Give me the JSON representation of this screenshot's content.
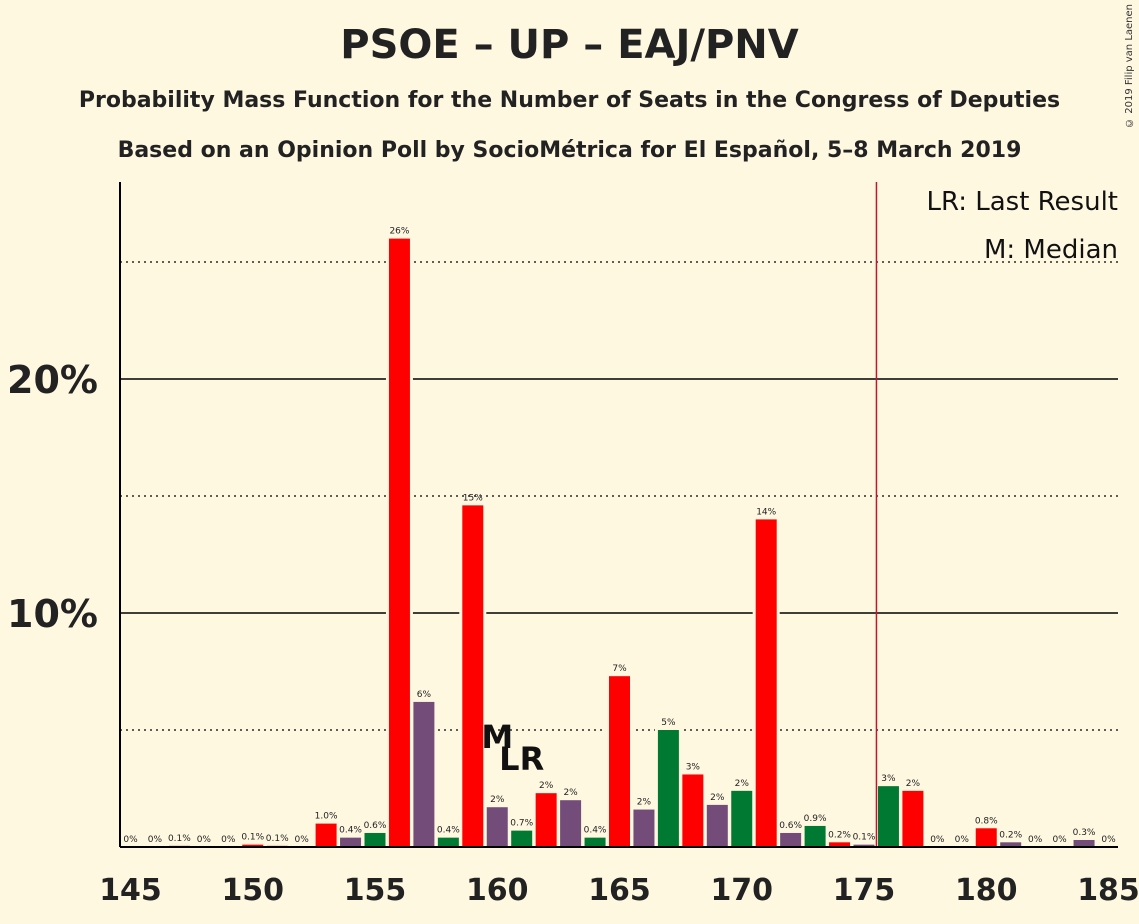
{
  "title": "PSOE – UP – EAJ/PNV",
  "subtitle1": "Probability Mass Function for the Number of Seats in the Congress of Deputies",
  "subtitle2": "Based on an Opinion Poll by SocioMétrica for El Español, 5–8 March 2019",
  "copyright": "© 2019 Filip van Laenen",
  "legend": {
    "lr": "LR: Last Result",
    "m": "M: Median"
  },
  "markers": {
    "median_label": "M",
    "median_seat": 160,
    "last_result_label": "LR",
    "last_result_seat": 161,
    "majority_seat": 176
  },
  "colors": {
    "red": "#FF0000",
    "purple": "#744C7A",
    "green": "#007A33",
    "majority_line": "#C0152A",
    "background": "#FFF8E1"
  },
  "chart_data": {
    "type": "bar",
    "x_ticks": [
      145,
      150,
      155,
      160,
      165,
      170,
      175,
      180,
      185
    ],
    "y_ticks": [
      "10%",
      "20%"
    ],
    "ylim": [
      0,
      28.5
    ],
    "xlim": [
      145,
      185
    ],
    "bars": [
      {
        "seat": 145,
        "value": 0,
        "label": "0%",
        "color": "red"
      },
      {
        "seat": 146,
        "value": 0,
        "label": "0%",
        "color": "red"
      },
      {
        "seat": 147,
        "value": 0.05,
        "label": "0.1%",
        "color": "red"
      },
      {
        "seat": 148,
        "value": 0,
        "label": "0%",
        "color": "red"
      },
      {
        "seat": 149,
        "value": 0,
        "label": "0%",
        "color": "red"
      },
      {
        "seat": 150,
        "value": 0.1,
        "label": "0.1%",
        "color": "red"
      },
      {
        "seat": 151,
        "value": 0.05,
        "label": "0.1%",
        "color": "red"
      },
      {
        "seat": 152,
        "value": 0,
        "label": "0%",
        "color": "red"
      },
      {
        "seat": 153,
        "value": 1.0,
        "label": "1.0%",
        "color": "red"
      },
      {
        "seat": 154,
        "value": 0.4,
        "label": "0.4%",
        "color": "purple"
      },
      {
        "seat": 155,
        "value": 0.6,
        "label": "0.6%",
        "color": "green"
      },
      {
        "seat": 156,
        "value": 26.0,
        "label": "26%",
        "color": "red"
      },
      {
        "seat": 157,
        "value": 6.2,
        "label": "6%",
        "color": "purple"
      },
      {
        "seat": 158,
        "value": 0.4,
        "label": "0.4%",
        "color": "green"
      },
      {
        "seat": 159,
        "value": 14.6,
        "label": "15%",
        "color": "red"
      },
      {
        "seat": 160,
        "value": 1.7,
        "label": "2%",
        "color": "purple"
      },
      {
        "seat": 161,
        "value": 0.7,
        "label": "0.7%",
        "color": "green"
      },
      {
        "seat": 162,
        "value": 2.3,
        "label": "2%",
        "color": "red"
      },
      {
        "seat": 163,
        "value": 2.0,
        "label": "2%",
        "color": "purple"
      },
      {
        "seat": 164,
        "value": 0.4,
        "label": "0.4%",
        "color": "green"
      },
      {
        "seat": 165,
        "value": 7.3,
        "label": "7%",
        "color": "red"
      },
      {
        "seat": 166,
        "value": 1.6,
        "label": "2%",
        "color": "purple"
      },
      {
        "seat": 167,
        "value": 5.0,
        "label": "5%",
        "color": "green"
      },
      {
        "seat": 168,
        "value": 3.1,
        "label": "3%",
        "color": "red"
      },
      {
        "seat": 169,
        "value": 1.8,
        "label": "2%",
        "color": "purple"
      },
      {
        "seat": 170,
        "value": 2.4,
        "label": "2%",
        "color": "green"
      },
      {
        "seat": 171,
        "value": 14.0,
        "label": "14%",
        "color": "red"
      },
      {
        "seat": 172,
        "value": 0.6,
        "label": "0.6%",
        "color": "purple"
      },
      {
        "seat": 173,
        "value": 0.9,
        "label": "0.9%",
        "color": "green"
      },
      {
        "seat": 174,
        "value": 0.2,
        "label": "0.2%",
        "color": "red"
      },
      {
        "seat": 175,
        "value": 0.1,
        "label": "0.1%",
        "color": "purple"
      },
      {
        "seat": 176,
        "value": 2.6,
        "label": "3%",
        "color": "green"
      },
      {
        "seat": 177,
        "value": 2.4,
        "label": "2%",
        "color": "red"
      },
      {
        "seat": 178,
        "value": 0,
        "label": "0%",
        "color": "purple"
      },
      {
        "seat": 179,
        "value": 0,
        "label": "0%",
        "color": "green"
      },
      {
        "seat": 180,
        "value": 0.8,
        "label": "0.8%",
        "color": "red"
      },
      {
        "seat": 181,
        "value": 0.2,
        "label": "0.2%",
        "color": "purple"
      },
      {
        "seat": 182,
        "value": 0,
        "label": "0%",
        "color": "green"
      },
      {
        "seat": 183,
        "value": 0,
        "label": "0%",
        "color": "red"
      },
      {
        "seat": 184,
        "value": 0.3,
        "label": "0.3%",
        "color": "purple"
      },
      {
        "seat": 185,
        "value": 0,
        "label": "0%",
        "color": "green"
      }
    ],
    "grid": "solid at 10% steps, dotted at 5% steps"
  }
}
